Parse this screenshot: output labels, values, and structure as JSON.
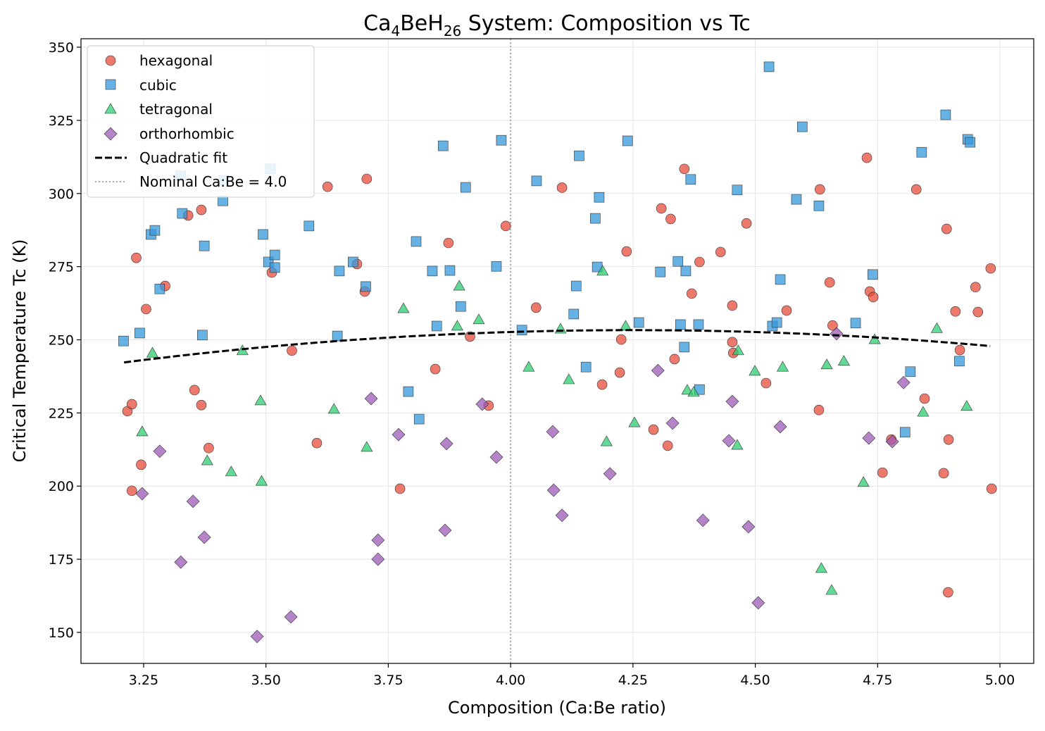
{
  "chart_data": {
    "type": "scatter",
    "title_parts": [
      "Ca",
      "4",
      "BeH",
      "26",
      " System: Composition vs Tc"
    ],
    "xlabel": "Composition (Ca:Be ratio)",
    "ylabel": "Critical Temperature Tc (K)",
    "xlim": [
      3.122,
      5.069
    ],
    "ylim": [
      139.4,
      352.9
    ],
    "xticks": [
      "3.25",
      "3.50",
      "3.75",
      "4.00",
      "4.25",
      "4.50",
      "4.75",
      "5.00"
    ],
    "yticks": [
      "150",
      "175",
      "200",
      "225",
      "250",
      "275",
      "300",
      "325",
      "350"
    ],
    "grid": true,
    "legend_position": "top-left",
    "series": [
      {
        "name": "hexagonal",
        "marker": "circle",
        "color": "#E74C3C",
        "points": [
          [
            3.217,
            225.6
          ],
          [
            3.226,
            228
          ],
          [
            3.235,
            278
          ],
          [
            3.226,
            198.4
          ],
          [
            3.245,
            207.3
          ],
          [
            3.255,
            260.5
          ],
          [
            3.294,
            268.4
          ],
          [
            3.341,
            292.5
          ],
          [
            3.368,
            294.4
          ],
          [
            3.354,
            232.8
          ],
          [
            3.368,
            227.7
          ],
          [
            3.383,
            213
          ],
          [
            3.512,
            273
          ],
          [
            3.553,
            246.3
          ],
          [
            3.604,
            214.7
          ],
          [
            3.626,
            302.3
          ],
          [
            3.706,
            305
          ],
          [
            3.686,
            275.9
          ],
          [
            3.702,
            266.5
          ],
          [
            3.774,
            199.1
          ],
          [
            3.846,
            240
          ],
          [
            3.873,
            283.1
          ],
          [
            3.917,
            251.1
          ],
          [
            3.955,
            227.5
          ],
          [
            3.99,
            288.9
          ],
          [
            4.052,
            261
          ],
          [
            4.105,
            302
          ],
          [
            4.187,
            234.7
          ],
          [
            4.223,
            238.8
          ],
          [
            4.226,
            250.1
          ],
          [
            4.237,
            280.2
          ],
          [
            4.292,
            219.3
          ],
          [
            4.308,
            294.9
          ],
          [
            4.321,
            213.8
          ],
          [
            4.327,
            291.3
          ],
          [
            4.335,
            243.4
          ],
          [
            4.355,
            308.4
          ],
          [
            4.37,
            265.8
          ],
          [
            4.386,
            276.6
          ],
          [
            4.429,
            280
          ],
          [
            4.453,
            261.7
          ],
          [
            4.453,
            249.2
          ],
          [
            4.455,
            245.5
          ],
          [
            4.482,
            289.8
          ],
          [
            4.522,
            235.2
          ],
          [
            4.564,
            260
          ],
          [
            4.63,
            226
          ],
          [
            4.632,
            301.4
          ],
          [
            4.652,
            269.6
          ],
          [
            4.658,
            254.9
          ],
          [
            4.728,
            312.2
          ],
          [
            4.734,
            266.5
          ],
          [
            4.741,
            264.6
          ],
          [
            4.76,
            204.6
          ],
          [
            4.778,
            215.9
          ],
          [
            4.829,
            301.4
          ],
          [
            4.846,
            229.9
          ],
          [
            4.885,
            204.4
          ],
          [
            4.891,
            287.9
          ],
          [
            4.894,
            163.7
          ],
          [
            4.895,
            215.9
          ],
          [
            4.909,
            259.7
          ],
          [
            4.918,
            246.5
          ],
          [
            4.95,
            268
          ],
          [
            4.955,
            259.5
          ],
          [
            4.981,
            274.4
          ],
          [
            4.983,
            199.1
          ]
        ]
      },
      {
        "name": "cubic",
        "marker": "square",
        "color": "#3498DB",
        "points": [
          [
            3.209,
            249.6
          ],
          [
            3.242,
            252.3
          ],
          [
            3.265,
            286
          ],
          [
            3.273,
            287.4
          ],
          [
            3.283,
            267.4
          ],
          [
            3.326,
            306
          ],
          [
            3.329,
            293.2
          ],
          [
            3.374,
            282.1
          ],
          [
            3.37,
            251.6
          ],
          [
            3.412,
            297.5
          ],
          [
            3.414,
            304.5
          ],
          [
            3.509,
            308.4
          ],
          [
            3.494,
            286
          ],
          [
            3.505,
            276.6
          ],
          [
            3.518,
            279
          ],
          [
            3.518,
            274.7
          ],
          [
            3.588,
            288.9
          ],
          [
            3.646,
            251.3
          ],
          [
            3.65,
            273.5
          ],
          [
            3.678,
            276.6
          ],
          [
            3.704,
            268.2
          ],
          [
            3.791,
            232.3
          ],
          [
            3.807,
            283.6
          ],
          [
            3.813,
            222.9
          ],
          [
            3.84,
            273.5
          ],
          [
            3.849,
            254.7
          ],
          [
            3.862,
            316.3
          ],
          [
            3.876,
            273.7
          ],
          [
            3.898,
            261.4
          ],
          [
            3.908,
            302.1
          ],
          [
            3.971,
            275.1
          ],
          [
            3.981,
            318.2
          ],
          [
            4.023,
            253.3
          ],
          [
            4.053,
            304.3
          ],
          [
            4.129,
            258.8
          ],
          [
            4.134,
            268.4
          ],
          [
            4.14,
            312.9
          ],
          [
            4.154,
            240.7
          ],
          [
            4.173,
            291.5
          ],
          [
            4.177,
            274.9
          ],
          [
            4.181,
            298.7
          ],
          [
            4.239,
            318
          ],
          [
            4.262,
            255.9
          ],
          [
            4.306,
            273.2
          ],
          [
            4.342,
            276.8
          ],
          [
            4.347,
            255.2
          ],
          [
            4.355,
            247.5
          ],
          [
            4.358,
            273.5
          ],
          [
            4.368,
            304.8
          ],
          [
            4.384,
            255.2
          ],
          [
            4.386,
            233
          ],
          [
            4.463,
            301.2
          ],
          [
            4.528,
            343.3
          ],
          [
            4.535,
            254.7
          ],
          [
            4.544,
            255.9
          ],
          [
            4.551,
            270.6
          ],
          [
            4.584,
            298
          ],
          [
            4.596,
            322.8
          ],
          [
            4.63,
            295.8
          ],
          [
            4.705,
            255.7
          ],
          [
            4.74,
            272.3
          ],
          [
            4.806,
            218.4
          ],
          [
            4.817,
            239.1
          ],
          [
            4.84,
            314.1
          ],
          [
            4.917,
            242.7
          ],
          [
            4.889,
            326.9
          ],
          [
            4.934,
            318.5
          ],
          [
            4.939,
            317.5
          ]
        ]
      },
      {
        "name": "tetragonal",
        "marker": "triangle",
        "color": "#2ECC71",
        "points": [
          [
            3.268,
            245.5
          ],
          [
            3.247,
            218.6
          ],
          [
            3.38,
            208.7
          ],
          [
            3.429,
            204.9
          ],
          [
            3.452,
            246.3
          ],
          [
            3.489,
            229.2
          ],
          [
            3.491,
            201.7
          ],
          [
            3.639,
            226.3
          ],
          [
            3.706,
            213.3
          ],
          [
            3.781,
            260.7
          ],
          [
            3.891,
            254.7
          ],
          [
            3.895,
            268.4
          ],
          [
            3.935,
            256.9
          ],
          [
            4.037,
            240.7
          ],
          [
            4.102,
            253.7
          ],
          [
            4.119,
            236.4
          ],
          [
            4.188,
            273.5
          ],
          [
            4.196,
            215.2
          ],
          [
            4.235,
            254.7
          ],
          [
            4.253,
            221.7
          ],
          [
            4.361,
            232.8
          ],
          [
            4.374,
            232.1
          ],
          [
            4.463,
            214
          ],
          [
            4.465,
            246.3
          ],
          [
            4.499,
            239.3
          ],
          [
            4.556,
            240.7
          ],
          [
            4.635,
            171.9
          ],
          [
            4.646,
            241.5
          ],
          [
            4.656,
            164.4
          ],
          [
            4.681,
            242.7
          ],
          [
            4.721,
            201.3
          ],
          [
            4.744,
            250.1
          ],
          [
            4.843,
            225.3
          ],
          [
            4.871,
            253.9
          ],
          [
            4.932,
            227.3
          ]
        ]
      },
      {
        "name": "orthorhombic",
        "marker": "diamond",
        "color": "#9B59B6",
        "points": [
          [
            3.247,
            197.4
          ],
          [
            3.283,
            211.9
          ],
          [
            3.326,
            174
          ],
          [
            3.351,
            194.8
          ],
          [
            3.374,
            182.5
          ],
          [
            3.482,
            148.6
          ],
          [
            3.551,
            155.3
          ],
          [
            3.715,
            229.9
          ],
          [
            3.729,
            181.5
          ],
          [
            3.729,
            175
          ],
          [
            3.771,
            217.6
          ],
          [
            3.866,
            184.9
          ],
          [
            3.869,
            214.5
          ],
          [
            3.942,
            228
          ],
          [
            3.971,
            209.9
          ],
          [
            4.086,
            218.6
          ],
          [
            4.088,
            198.6
          ],
          [
            4.105,
            190
          ],
          [
            4.203,
            204.2
          ],
          [
            4.301,
            239.5
          ],
          [
            4.331,
            221.5
          ],
          [
            4.393,
            188.3
          ],
          [
            4.446,
            215.5
          ],
          [
            4.453,
            228.9
          ],
          [
            4.486,
            186.1
          ],
          [
            4.506,
            160.1
          ],
          [
            4.551,
            220.3
          ],
          [
            4.666,
            252.1
          ],
          [
            4.732,
            216.4
          ],
          [
            4.78,
            215.2
          ],
          [
            4.803,
            235.4
          ]
        ]
      }
    ],
    "fit": {
      "name": "Quadratic fit",
      "color": "#000000",
      "style": "dashed",
      "x_range": [
        3.21,
        4.98
      ],
      "coefficients_vertex_form": {
        "a": -10.2,
        "h": 4.25,
        "k": 253.3
      }
    },
    "reference_line": {
      "name": "Nominal Ca:Be = 4.0",
      "x": 4.0,
      "color": "#AAAAAA",
      "style": "dotted"
    }
  }
}
